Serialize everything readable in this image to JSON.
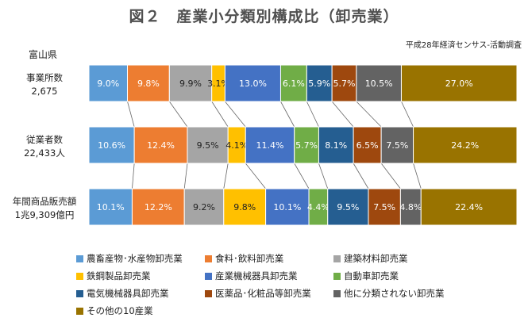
{
  "chart_data": {
    "type": "bar",
    "stacked": true,
    "percent": true,
    "orientation": "horizontal",
    "title": "図２　産業小分類別構成比（卸売業）",
    "region": "富山県",
    "source": "平成28年経済センサス-活動調査",
    "categories": [
      {
        "label": "事業所数",
        "total": "2,675"
      },
      {
        "label": "従業者数",
        "total": "22,433人"
      },
      {
        "label": "年間商品販売額",
        "total": "1兆9,309億円"
      }
    ],
    "series": [
      {
        "name": "農畜産物･水産物卸売業",
        "color": "#5b9bd5",
        "values": [
          9.0,
          10.6,
          10.1
        ]
      },
      {
        "name": "食料･飲料卸売業",
        "color": "#ed7d31",
        "values": [
          9.8,
          12.4,
          12.2
        ]
      },
      {
        "name": "建築材料卸売業",
        "color": "#a5a5a5",
        "values": [
          9.9,
          9.5,
          9.2
        ]
      },
      {
        "name": "鉄鋼製品卸売業",
        "color": "#ffc000",
        "values": [
          3.1,
          4.1,
          9.8
        ]
      },
      {
        "name": "産業機械器具卸売業",
        "color": "#4472c4",
        "values": [
          13.0,
          11.4,
          10.1
        ]
      },
      {
        "name": "自動車卸売業",
        "color": "#70ad47",
        "values": [
          6.1,
          5.7,
          4.4
        ]
      },
      {
        "name": "電気機械器具卸売業",
        "color": "#255e91",
        "values": [
          5.9,
          8.1,
          9.5
        ]
      },
      {
        "name": "医薬品･化粧品等卸売業",
        "color": "#9e480e",
        "values": [
          5.7,
          6.5,
          7.5
        ]
      },
      {
        "name": "他に分類されない卸売業",
        "color": "#636363",
        "values": [
          10.5,
          7.5,
          4.8
        ]
      },
      {
        "name": "その他の10産業",
        "color": "#997300",
        "values": [
          27.0,
          24.2,
          22.4
        ]
      }
    ],
    "xlim": [
      0,
      100
    ],
    "grid": false,
    "legend": "bottom"
  }
}
